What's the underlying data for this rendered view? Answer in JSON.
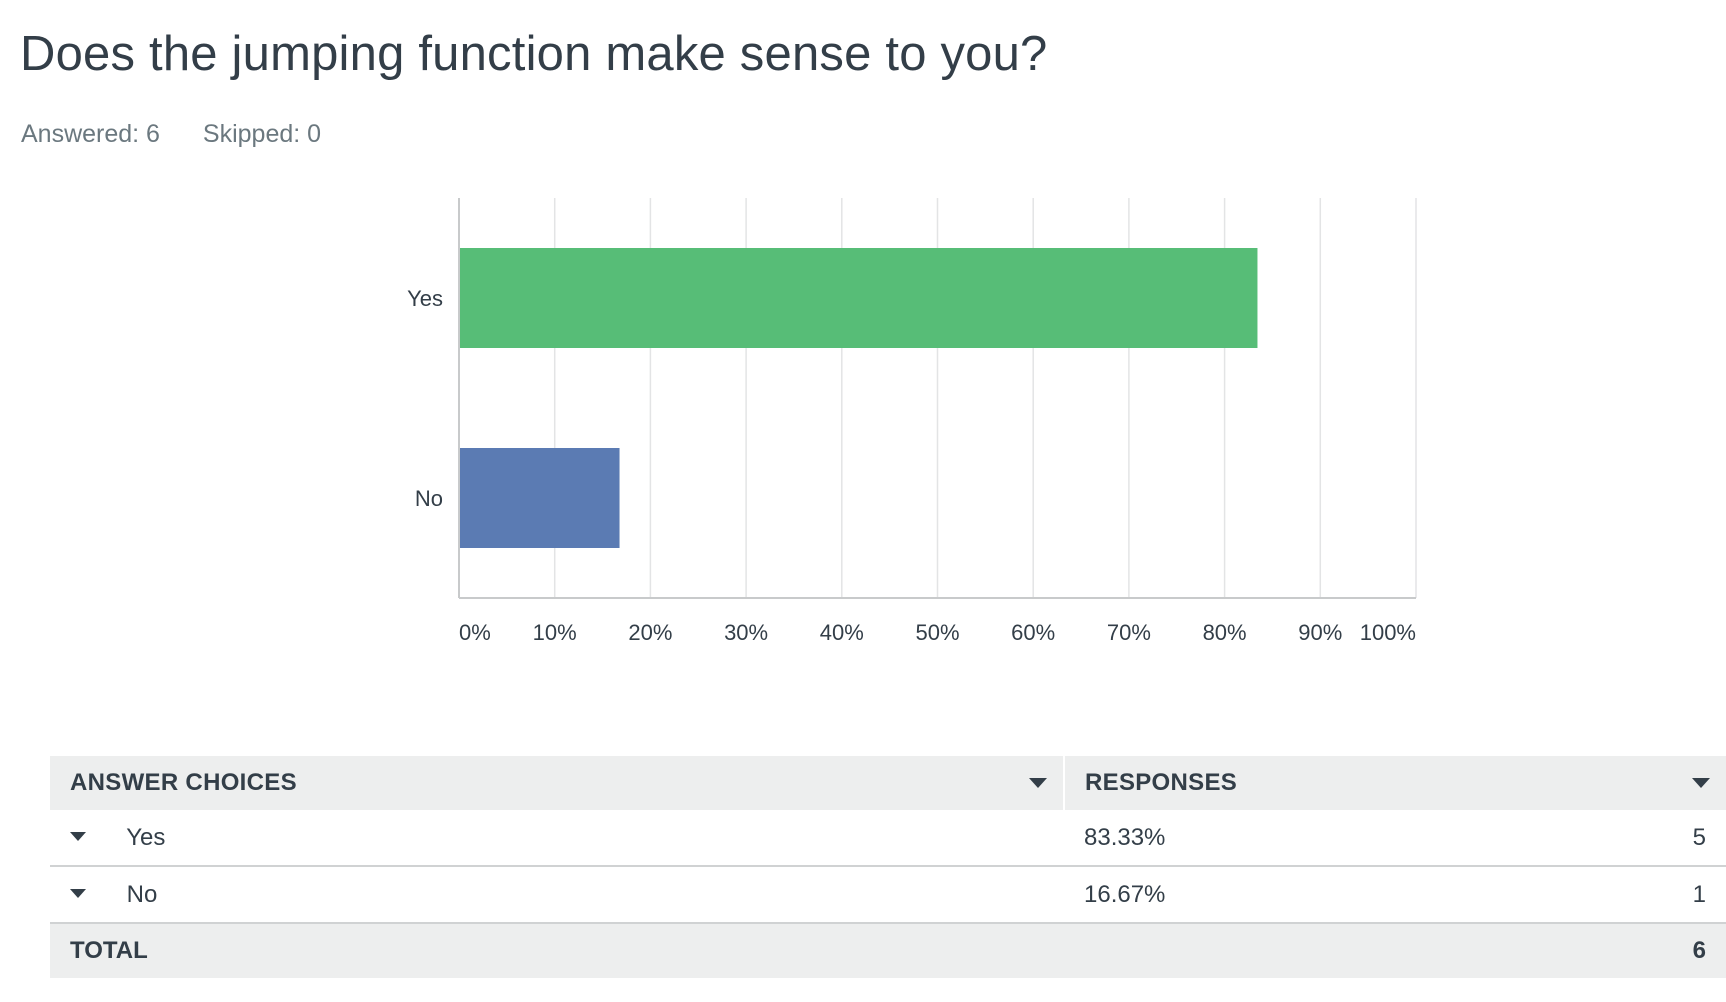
{
  "question": {
    "title": "Does the jumping function make sense to you?",
    "answered_label": "Answered: 6",
    "skipped_label": "Skipped: 0"
  },
  "chart_data": {
    "type": "bar",
    "orientation": "horizontal",
    "categories": [
      "Yes",
      "No"
    ],
    "values": [
      83.33,
      16.67
    ],
    "colors": [
      "#57bd77",
      "#5b7bb3"
    ],
    "xlim": [
      0,
      100
    ],
    "x_ticks": [
      "0%",
      "10%",
      "20%",
      "30%",
      "40%",
      "50%",
      "60%",
      "70%",
      "80%",
      "90%",
      "100%"
    ],
    "grid": true,
    "title": "",
    "xlabel": "",
    "ylabel": ""
  },
  "table": {
    "header_choices": "ANSWER CHOICES",
    "header_responses": "RESPONSES",
    "rows": [
      {
        "choice": "Yes",
        "percent": "83.33%",
        "count": "5"
      },
      {
        "choice": "No",
        "percent": "16.67%",
        "count": "1"
      }
    ],
    "total_label": "TOTAL",
    "total_value": "6"
  }
}
